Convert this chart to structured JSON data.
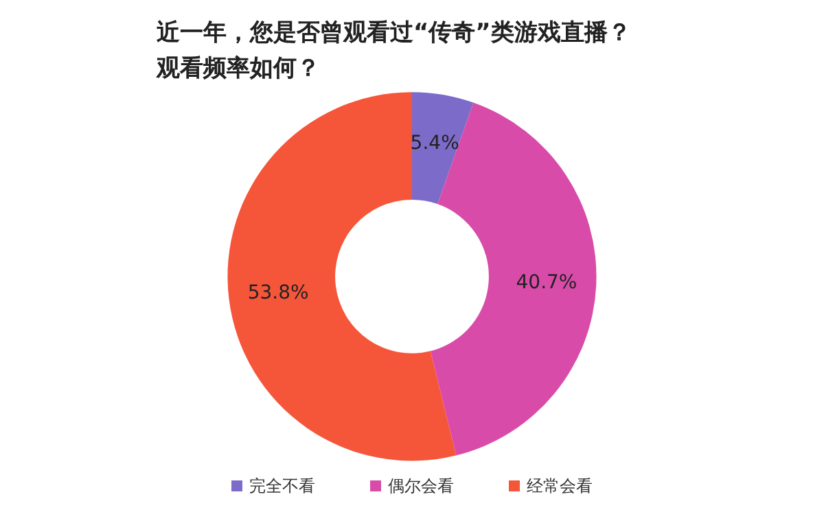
{
  "chart_data": {
    "type": "donut",
    "title": "近一年，您是否曾观看过“传奇”类游戏直播？观看频率如何？",
    "categories": [
      "完全不看",
      "偶尔会看",
      "经常会看"
    ],
    "values": [
      5.4,
      40.7,
      53.8
    ],
    "colors": [
      "#7d6bc9",
      "#d94ba9",
      "#f5563a"
    ],
    "value_labels": [
      "5.4%",
      "40.7%",
      "53.8%"
    ],
    "legend": "bottom"
  }
}
